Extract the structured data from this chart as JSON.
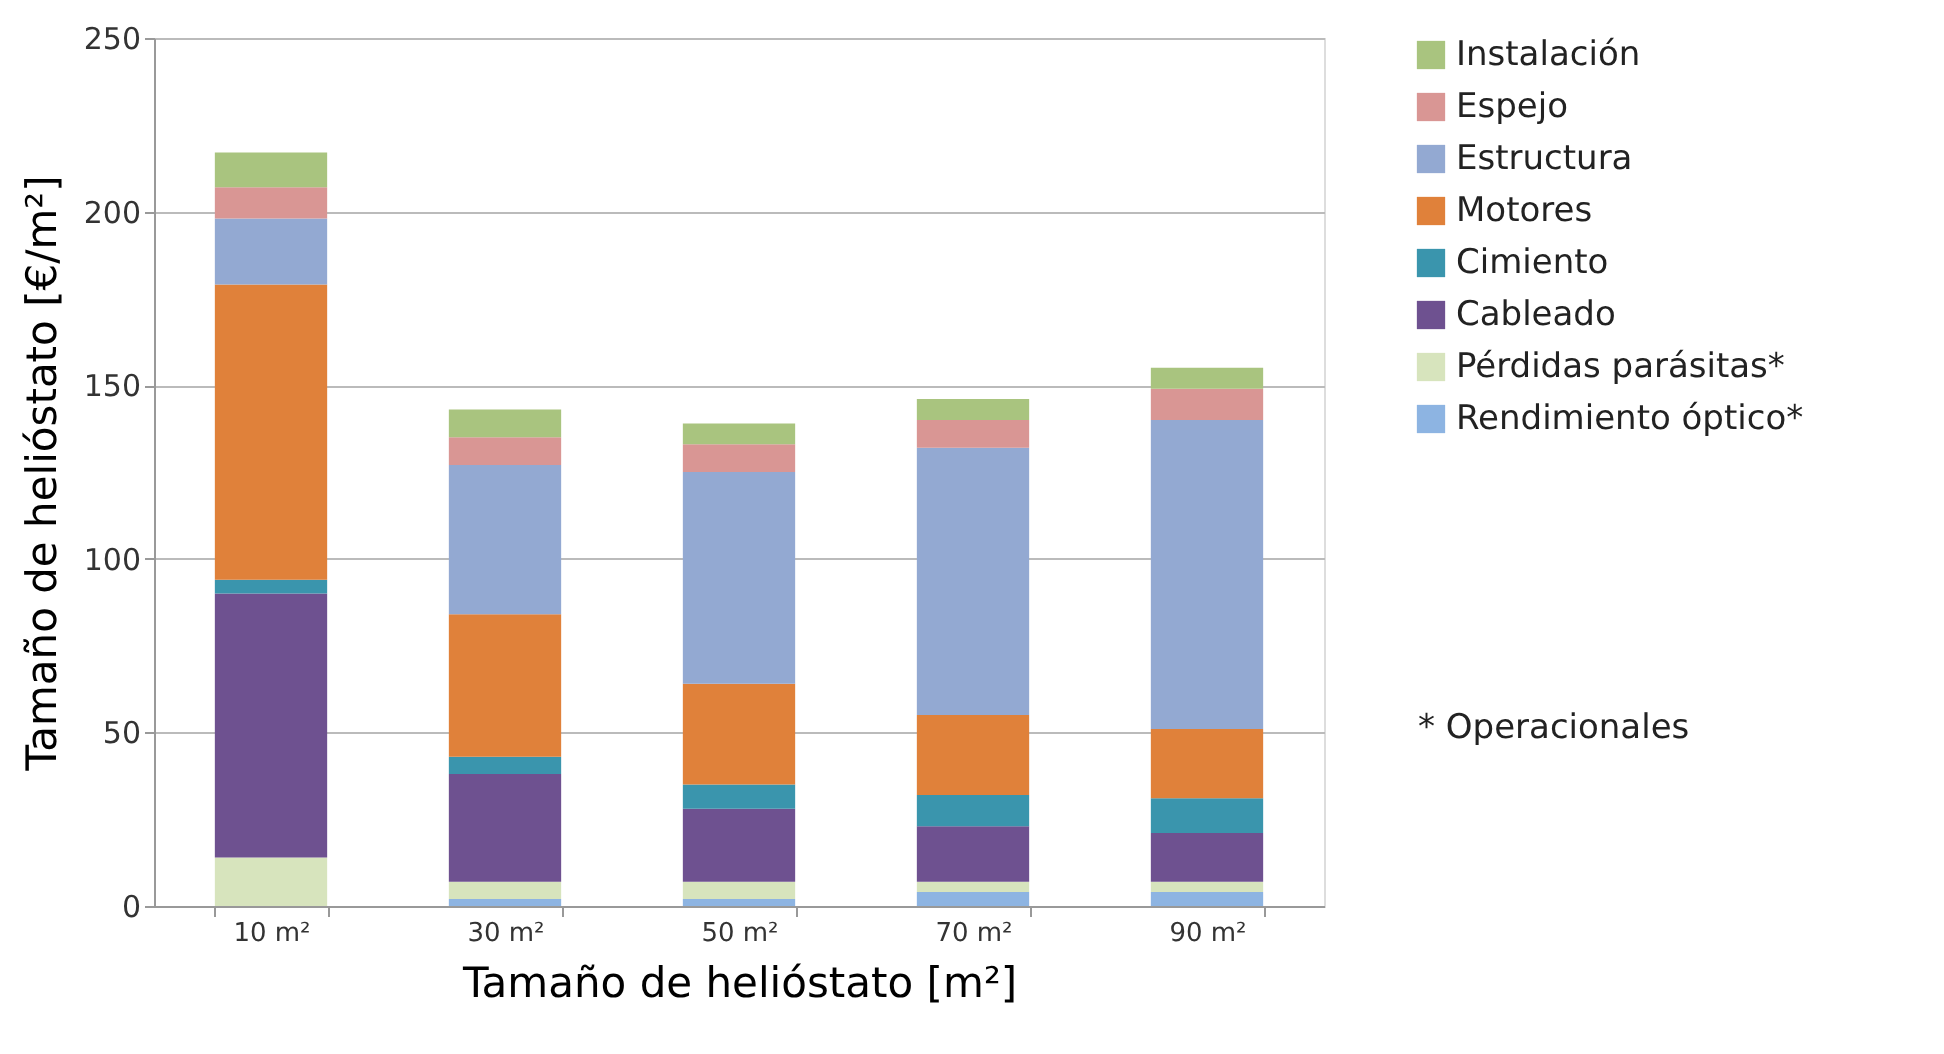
{
  "chart_data": {
    "type": "bar",
    "stacked": true,
    "xlabel": "Tamaño de helióstato  [m²]",
    "ylabel": "Tamaño de helióstato [€/m²]",
    "categories": [
      "10 m²",
      "30 m²",
      "50 m²",
      "70 m²",
      "90 m²"
    ],
    "series": [
      {
        "name": "Rendimiento óptico*",
        "color": "#8db4e2",
        "values": [
          0,
          2,
          2,
          4,
          4
        ]
      },
      {
        "name": "Pérdidas parásitas*",
        "color": "#d7e4bd",
        "values": [
          14,
          5,
          5,
          3,
          3
        ]
      },
      {
        "name": "Cableado",
        "color": "#6e5190",
        "values": [
          76,
          31,
          21,
          16,
          14
        ]
      },
      {
        "name": "Cimiento",
        "color": "#3a95ad",
        "values": [
          4,
          5,
          7,
          9,
          10
        ]
      },
      {
        "name": "Motores",
        "color": "#e0813a",
        "values": [
          85,
          41,
          29,
          23,
          20
        ]
      },
      {
        "name": "Estructura",
        "color": "#93a9d2",
        "values": [
          19,
          43,
          61,
          77,
          89
        ]
      },
      {
        "name": "Espejo",
        "color": "#d99694",
        "values": [
          9,
          8,
          8,
          8,
          9
        ]
      },
      {
        "name": "Instalación",
        "color": "#a9c47f",
        "values": [
          10,
          8,
          6,
          6,
          6
        ]
      }
    ],
    "ylim": [
      0,
      250
    ],
    "yticks": [
      0,
      50,
      100,
      150,
      200,
      250
    ],
    "grid": "y",
    "legend": "right",
    "annotations": [
      "* Operacionales"
    ]
  }
}
